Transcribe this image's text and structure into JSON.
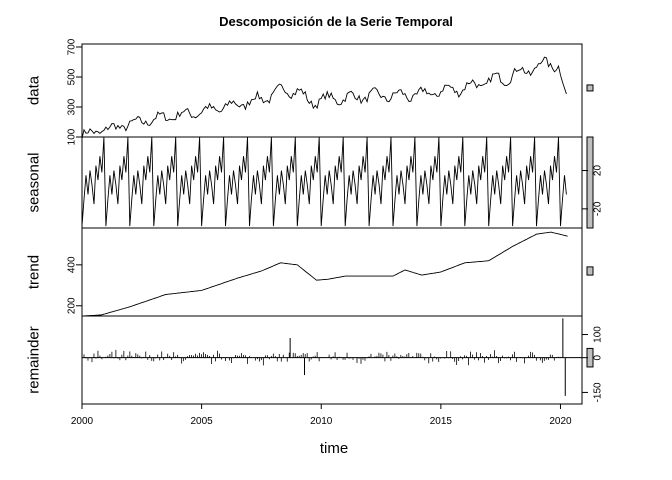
{
  "chart_data": {
    "type": "line",
    "title": "Descomposición de la Serie Temporal",
    "xlabel": "time",
    "xlim": [
      2000,
      2020.9
    ],
    "x_ticks": [
      "2000",
      "2005",
      "2010",
      "2015",
      "2020"
    ],
    "grid": false,
    "panels": [
      {
        "name": "data",
        "ylim": [
          100,
          720
        ],
        "y_ticks": [
          "100",
          "300",
          "500",
          "700"
        ],
        "y_tick_values": [
          100,
          300,
          500,
          700
        ],
        "tick_side": "left",
        "scale_bar": [
          407,
          447
        ],
        "series": {
          "x": [
            2000.0,
            2001.0,
            2002.0,
            2003.0,
            2004.0,
            2005.0,
            2006.0,
            2007.0,
            2008.0,
            2008.5,
            2009.0,
            2009.5,
            2010.0,
            2011.0,
            2012.0,
            2013.0,
            2014.0,
            2015.0,
            2016.0,
            2017.0,
            2018.0,
            2019.0,
            2019.9,
            2020.25
          ],
          "values": [
            115,
            150,
            185,
            220,
            245,
            270,
            300,
            335,
            380,
            420,
            410,
            330,
            350,
            360,
            375,
            375,
            380,
            405,
            430,
            470,
            510,
            570,
            600,
            350
          ]
        }
      },
      {
        "name": "seasonal",
        "ylim": [
          -40,
          55
        ],
        "y_ticks": [
          "20",
          "-20"
        ],
        "y_tick_values": [
          20,
          -20
        ],
        "tick_side": "right",
        "scale_bar": [
          -40,
          55
        ],
        "series": {
          "period": 1,
          "x_start": 2000.0,
          "x_end": 2020.3,
          "phase": [
            0.0,
            0.083,
            0.167,
            0.25,
            0.333,
            0.417,
            0.5,
            0.583,
            0.667,
            0.75,
            0.833,
            0.917
          ],
          "values": [
            -38,
            -10,
            15,
            -5,
            20,
            5,
            -15,
            25,
            10,
            35,
            18,
            55
          ]
        }
      },
      {
        "name": "trend",
        "ylim": [
          150,
          580
        ],
        "y_ticks": [
          "200",
          "400"
        ],
        "y_tick_values": [
          200,
          400
        ],
        "tick_side": "left",
        "scale_bar": [
          350,
          390
        ],
        "series": {
          "x": [
            2000.0,
            2000.8,
            2002.0,
            2003.5,
            2005.0,
            2006.5,
            2007.5,
            2008.3,
            2009.0,
            2009.8,
            2010.3,
            2011.0,
            2012.0,
            2013.0,
            2013.5,
            2014.2,
            2015.0,
            2016.0,
            2017.0,
            2018.0,
            2019.0,
            2019.6,
            2020.3
          ],
          "values": [
            150,
            155,
            195,
            255,
            275,
            335,
            370,
            410,
            400,
            325,
            330,
            345,
            345,
            345,
            375,
            350,
            365,
            410,
            420,
            490,
            550,
            560,
            540
          ]
        }
      },
      {
        "name": "remainder",
        "ylim": [
          -200,
          180
        ],
        "y_ticks": [
          "100",
          "0",
          "-150"
        ],
        "y_tick_values": [
          100,
          0,
          -150
        ],
        "tick_side": "right",
        "scale_bar": [
          -40,
          40
        ],
        "series": {
          "x_start": 2000.0,
          "step": 0.0833,
          "spikes": [
            {
              "x": 2008.7,
              "value": 85
            },
            {
              "x": 2009.3,
              "value": -75
            },
            {
              "x": 2020.1,
              "value": 170
            },
            {
              "x": 2020.2,
              "value": -165
            }
          ],
          "typical_amplitude": 25
        }
      }
    ]
  }
}
